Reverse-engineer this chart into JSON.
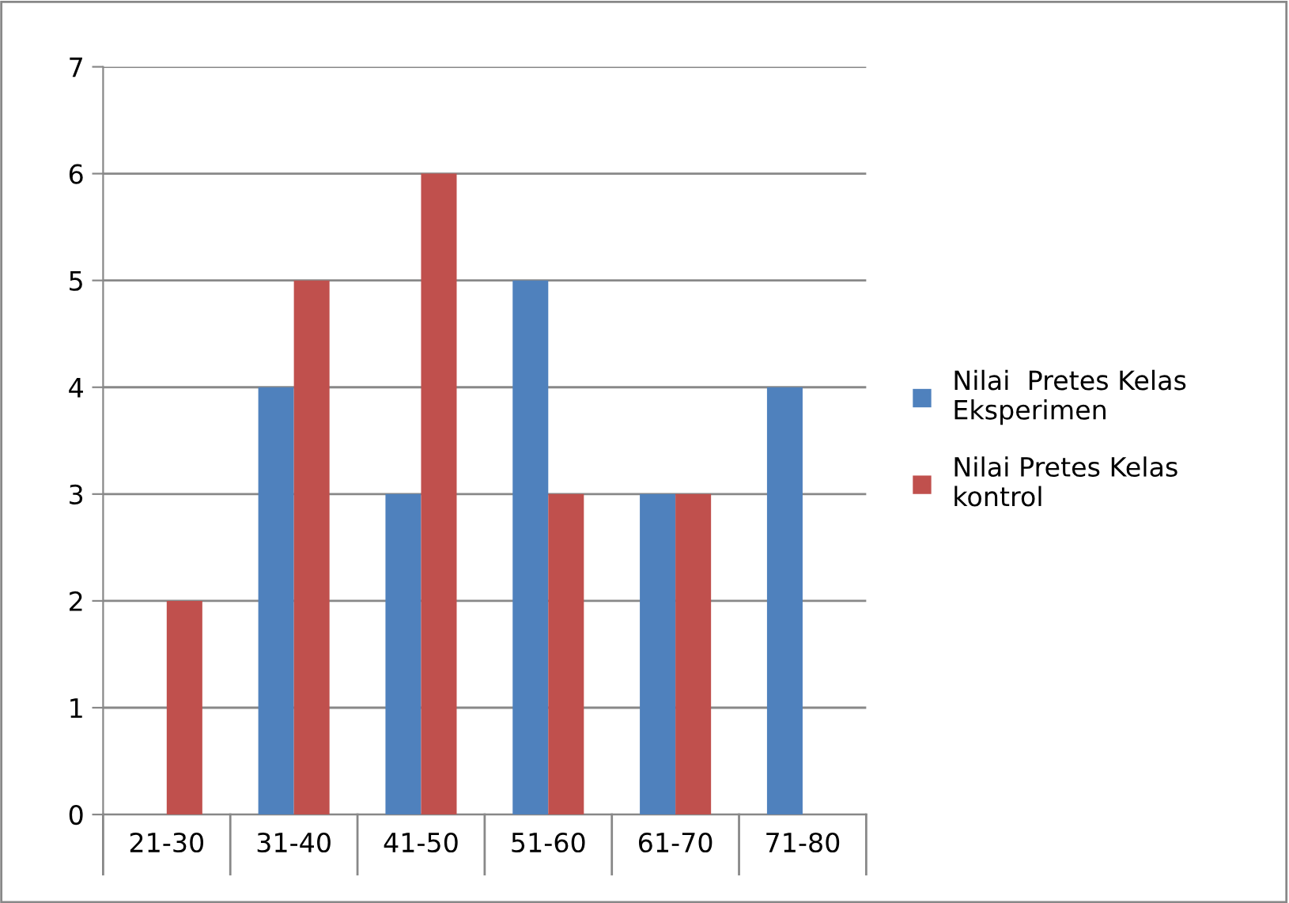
{
  "chart_data": {
    "type": "bar",
    "categories": [
      "21-30",
      "31-40",
      "41-50",
      "51-60",
      "61-70",
      "71-80"
    ],
    "series": [
      {
        "name": "Nilai  Pretes Kelas\nEksperimen",
        "color": "#4f81bd",
        "values": [
          0,
          4,
          3,
          5,
          3,
          4
        ]
      },
      {
        "name": "Nilai Pretes Kelas\nkontrol",
        "color": "#c0504d",
        "values": [
          2,
          5,
          6,
          3,
          3,
          0
        ]
      }
    ],
    "ylim": [
      0,
      7
    ],
    "yticks": [
      0,
      1,
      2,
      3,
      4,
      5,
      6,
      7
    ],
    "grid": "y",
    "legend": "right"
  }
}
